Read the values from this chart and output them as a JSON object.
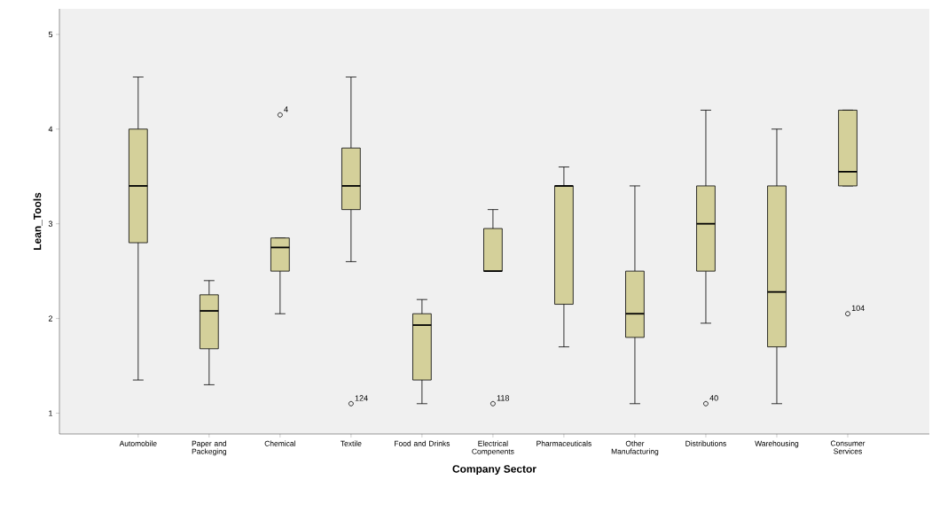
{
  "chart_data": {
    "type": "box",
    "xlabel": "Company Sector",
    "ylabel": "Lean_Tools",
    "categories": [
      "Automobile",
      "Paper and Packeging",
      "Chemical",
      "Textile",
      "Food and Drinks",
      "Electrical Compenents",
      "Pharmaceuticals",
      "Other Manufacturing",
      "Distributions",
      "Warehousing",
      "Consumer Services"
    ],
    "series": [
      {
        "color": "#d4d09a",
        "boxes": [
          {
            "low": 1.35,
            "q1": 2.8,
            "median": 3.4,
            "q3": 4.0,
            "high": 4.55
          },
          {
            "low": 1.3,
            "q1": 1.68,
            "median": 2.08,
            "q3": 2.25,
            "high": 2.4
          },
          {
            "low": 2.05,
            "q1": 2.5,
            "median": 2.75,
            "q3": 2.85,
            "high": 2.85,
            "outliers": [
              4.15
            ]
          },
          {
            "low": 2.6,
            "q1": 3.15,
            "median": 3.4,
            "q3": 3.8,
            "high": 4.55,
            "outliers": [
              1.1
            ]
          },
          {
            "low": 1.1,
            "q1": 1.35,
            "median": 1.93,
            "q3": 2.05,
            "high": 2.2
          },
          {
            "low": 2.5,
            "q1": 2.5,
            "median": 2.5,
            "q3": 2.95,
            "high": 3.15,
            "outliers": [
              1.1
            ]
          },
          {
            "low": 1.7,
            "q1": 2.15,
            "median": 3.4,
            "q3": 3.4,
            "high": 3.6
          },
          {
            "low": 1.1,
            "q1": 1.8,
            "median": 2.05,
            "q3": 2.5,
            "high": 3.4
          },
          {
            "low": 1.95,
            "q1": 2.5,
            "median": 3.0,
            "q3": 3.4,
            "high": 4.2,
            "outliers": [
              1.1
            ]
          },
          {
            "low": 1.1,
            "q1": 1.7,
            "median": 2.28,
            "q3": 3.4,
            "high": 4.0
          },
          {
            "low": 3.4,
            "q1": 3.4,
            "median": 3.55,
            "q3": 4.2,
            "high": 4.2,
            "outliers": [
              2.05
            ]
          }
        ]
      }
    ],
    "ylim": [
      0.78,
      5.27
    ],
    "yticks": [
      1,
      2,
      3,
      4,
      5
    ],
    "grid": false,
    "marker": "circle",
    "annotations": [
      "4",
      "124",
      "118",
      "40",
      "104"
    ]
  }
}
